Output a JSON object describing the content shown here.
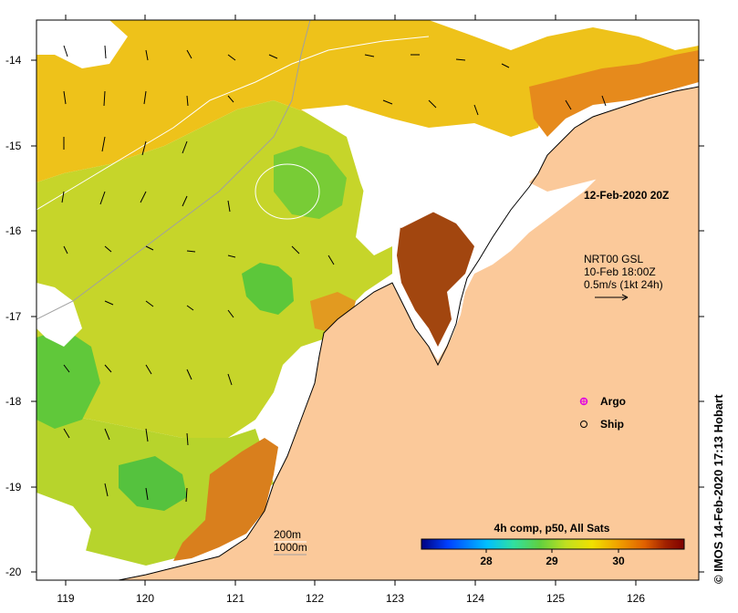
{
  "map": {
    "lon_ticks": [
      "119",
      "120",
      "121",
      "122",
      "123",
      "124",
      "125",
      "126"
    ],
    "lat_ticks": [
      "-14",
      "-15",
      "-16",
      "-17",
      "-18",
      "-19",
      "-20"
    ],
    "date_label": "12-Feb-2020 20Z",
    "current_legend": {
      "line1": "NRT00 GSL",
      "line2": "10-Feb 18:00Z",
      "line3": "0.5m/s (1kt 24h)"
    },
    "symbols": {
      "argo": {
        "label": "Argo",
        "color": "#e000e0"
      },
      "ship": {
        "label": "Ship"
      }
    },
    "contours": {
      "d200": "200m",
      "d1000": "1000m"
    },
    "colorbar": {
      "title": "4h comp, p50, All Sats",
      "ticks": [
        "28",
        "29",
        "30"
      ],
      "colors": [
        "#00007f",
        "#0040ff",
        "#00c0ff",
        "#30e0a0",
        "#60d040",
        "#c0e020",
        "#f0e000",
        "#f0a000",
        "#e06000",
        "#a02000",
        "#7f0000"
      ]
    },
    "credit": "© IMOS 14-Feb-2020 17:13 Hobart",
    "land_color": "#fbc99a"
  }
}
